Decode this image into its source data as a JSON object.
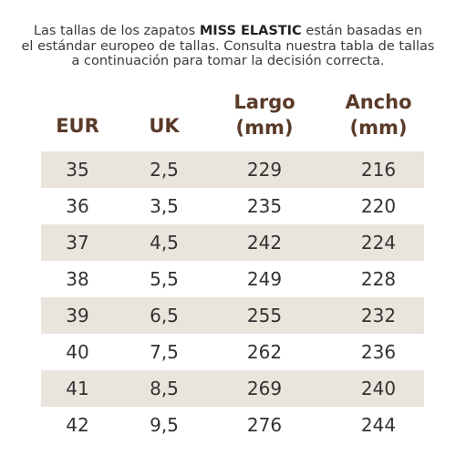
{
  "intro": {
    "line1_start": "Las tallas de los zapatos",
    "brand": "MISS ELASTIC",
    "line1_end": "están basadas en",
    "line2": "el estándar europeo de tallas. Consulta nuestra tabla de tallas",
    "line3": "a continuación para tomar la decisión correcta."
  },
  "table": {
    "headers": [
      "EUR",
      "UK",
      "Largo (mm)",
      "Ancho (mm)"
    ],
    "rows": [
      [
        "35",
        "2,5",
        "229",
        "216"
      ],
      [
        "36",
        "3,5",
        "235",
        "220"
      ],
      [
        "37",
        "4,5",
        "242",
        "224"
      ],
      [
        "38",
        "5,5",
        "249",
        "228"
      ],
      [
        "39",
        "6,5",
        "255",
        "232"
      ],
      [
        "40",
        "7,5",
        "262",
        "236"
      ],
      [
        "41",
        "8,5",
        "269",
        "240"
      ],
      [
        "42",
        "9,5",
        "276",
        "244"
      ]
    ]
  }
}
